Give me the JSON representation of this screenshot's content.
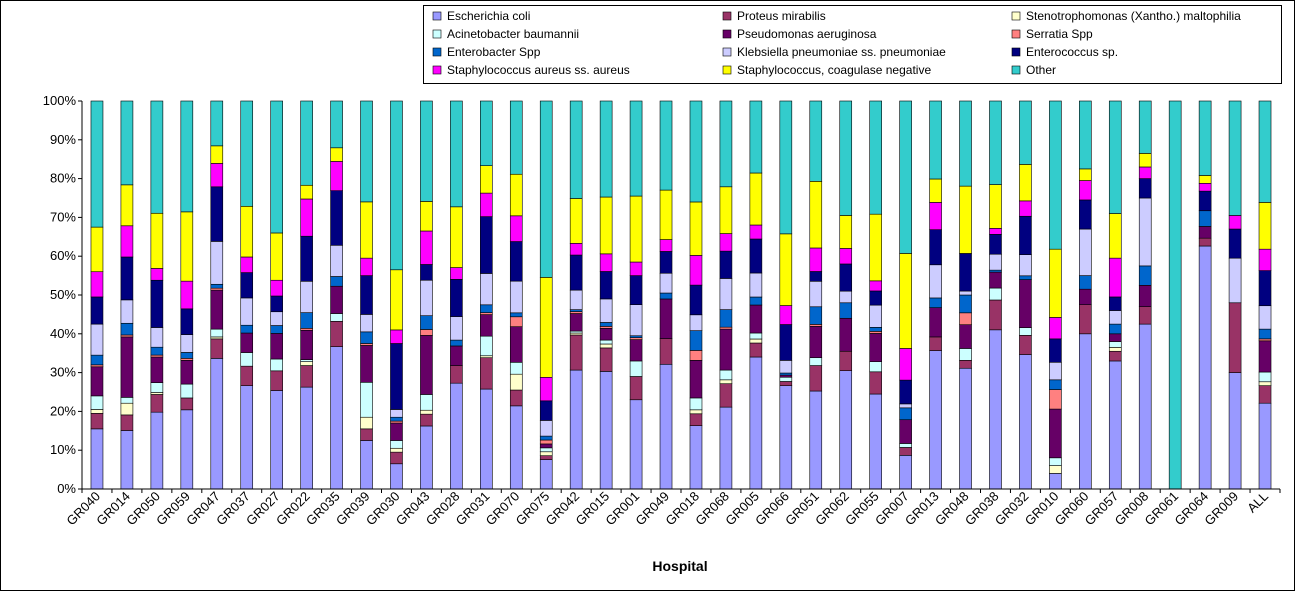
{
  "chart_data": {
    "type": "bar",
    "stacked": "percent",
    "xlabel": "Hospital",
    "ylabel": "",
    "ylim": [
      0,
      100
    ],
    "yticks": [
      "0%",
      "10%",
      "20%",
      "30%",
      "40%",
      "50%",
      "60%",
      "70%",
      "80%",
      "90%",
      "100%"
    ],
    "legend_position": "top-right",
    "grid": false,
    "categories": [
      "GR040",
      "GR014",
      "GR050",
      "GR059",
      "GR047",
      "GR037",
      "GR027",
      "GR022",
      "GR035",
      "GR039",
      "GR030",
      "GR043",
      "GR028",
      "GR031",
      "GR070",
      "GR075",
      "GR042",
      "GR015",
      "GR001",
      "GR049",
      "GR018",
      "GR068",
      "GR005",
      "GR066",
      "GR051",
      "GR062",
      "GR055",
      "GR007",
      "GR013",
      "GR048",
      "GR038",
      "GR032",
      "GR010",
      "GR060",
      "GR057",
      "GR008",
      "GR061",
      "GR064",
      "GR009",
      "ALL"
    ],
    "series": [
      {
        "name": "Escherichia coli",
        "color": "#9999ff",
        "values": [
          15.5,
          15,
          19.5,
          20,
          33.5,
          26.5,
          25,
          26,
          36.5,
          12.5,
          6.5,
          16,
          27,
          25.5,
          21,
          7.5,
          30.5,
          30,
          23,
          31.5,
          16,
          21,
          33,
          24.5,
          25,
          30.5,
          23.5,
          8.5,
          35.5,
          30.5,
          40,
          35,
          4,
          40,
          33,
          42.5,
          0,
          62,
          30,
          22
        ]
      },
      {
        "name": "Proteus mirabilis",
        "color": "#993366",
        "values": [
          4,
          4,
          4.5,
          3,
          5,
          5,
          5,
          5.5,
          6.5,
          3,
          3,
          3,
          4.5,
          8,
          4,
          1,
          9,
          6,
          6,
          6.5,
          3,
          6,
          3.5,
          1,
          6.5,
          5,
          5.5,
          2,
          3.5,
          2,
          7.5,
          5,
          0,
          7.5,
          2.5,
          4.5,
          0,
          2,
          18,
          4.5
        ]
      },
      {
        "name": "Stenotrophomonas (Xantho.) maltophilia",
        "color": "#ffffcc",
        "values": [
          1,
          3,
          0.5,
          0,
          0.5,
          0,
          0,
          1,
          0,
          3,
          1,
          1,
          0,
          0.5,
          4,
          1,
          0.5,
          1,
          0,
          0,
          1,
          1,
          1,
          0,
          0,
          0,
          0,
          0,
          0,
          0,
          0,
          0,
          2,
          0,
          1,
          0,
          0,
          0,
          0,
          1
        ]
      },
      {
        "name": "Acinetobacter baumannii",
        "color": "#ccffff",
        "values": [
          3.5,
          1.5,
          2.5,
          3.5,
          2,
          3.5,
          3,
          0.5,
          2,
          9,
          2,
          4,
          0,
          5,
          3,
          1,
          0.5,
          1,
          4,
          0,
          3,
          2.5,
          1.5,
          1,
          2,
          0,
          2.5,
          1,
          0,
          3,
          3,
          2,
          2,
          0,
          1.5,
          0,
          0,
          0,
          0,
          2.5
        ]
      },
      {
        "name": "Pseudomonas aeruginosa",
        "color": "#660066",
        "values": [
          7.5,
          15.5,
          6.5,
          6,
          10,
          5,
          6.5,
          7.5,
          7,
          9.5,
          4.5,
          15,
          5,
          5.5,
          9,
          1,
          4.5,
          3,
          5.5,
          10,
          9.5,
          10.5,
          7,
          0.5,
          8,
          8.5,
          7,
          6,
          7.5,
          6,
          4,
          12.5,
          12.5,
          4,
          2,
          5.5,
          0,
          3,
          0,
          8
        ]
      },
      {
        "name": "Serratia Spp",
        "color": "#ff8080",
        "values": [
          0.5,
          0.5,
          0.5,
          0.5,
          0.5,
          0,
          0,
          0.5,
          0,
          0.5,
          0.5,
          1.5,
          0,
          0.5,
          2.5,
          1,
          0.5,
          0.5,
          0.5,
          0,
          2.5,
          0.5,
          0,
          0,
          0.5,
          0,
          0.5,
          0,
          0,
          3,
          0,
          0,
          5,
          0,
          0,
          0,
          0,
          0,
          0,
          0.5
        ]
      },
      {
        "name": "Enterobacter Spp",
        "color": "#0066cc",
        "values": [
          2.5,
          3,
          2,
          1.5,
          1,
          2,
          2,
          4,
          2.5,
          3,
          1,
          3.5,
          1.5,
          2,
          1,
          1,
          0.5,
          1,
          0.5,
          1.5,
          5,
          4.5,
          2,
          0.5,
          4.5,
          4,
          1,
          3,
          2.5,
          4.5,
          0.5,
          1,
          2.5,
          3.5,
          2.5,
          5,
          0,
          4,
          0,
          2.5
        ]
      },
      {
        "name": "Klebsiella pneumoniae ss. pneumoniae",
        "color": "#ccccff",
        "values": [
          8,
          6,
          5,
          4.5,
          11,
          7,
          3.5,
          8,
          8,
          4.5,
          2,
          9,
          6,
          8,
          8,
          4,
          5,
          6,
          8,
          5,
          4,
          8,
          6,
          3,
          6.5,
          3,
          5.5,
          1,
          8.5,
          1,
          4,
          5.5,
          4.5,
          12,
          3.5,
          17.5,
          0,
          0,
          11.5,
          6
        ]
      },
      {
        "name": "Enterococcus sp.",
        "color": "#000080",
        "values": [
          7,
          11,
          12,
          6.5,
          14,
          6.5,
          4,
          11.5,
          14,
          10,
          17,
          4,
          9.5,
          14.5,
          10,
          5,
          9,
          7,
          7.5,
          5.5,
          7.5,
          7,
          8.5,
          8.5,
          2.5,
          7,
          3.5,
          6,
          9,
          9.5,
          5,
          10,
          6,
          7.5,
          3.5,
          5,
          0,
          5,
          7.5,
          9
        ]
      },
      {
        "name": "Staphylococcus aureus ss. aureus",
        "color": "#ff00ff",
        "values": [
          6.5,
          8,
          3,
          7,
          6,
          4,
          4,
          9.5,
          7.5,
          4.5,
          3.5,
          8.5,
          3,
          6,
          6.5,
          6,
          3,
          4.5,
          3.5,
          3,
          7.5,
          4.5,
          3.5,
          4.5,
          6,
          4,
          2.5,
          8,
          7,
          0,
          1.5,
          4,
          5.5,
          5,
          10,
          3,
          0,
          2,
          3.5,
          5.5
        ]
      },
      {
        "name": "Staphylococcus, coagulase negative",
        "color": "#ffff00",
        "values": [
          11.5,
          10.5,
          14,
          17.5,
          4.5,
          13,
          12,
          3.5,
          3.5,
          14.5,
          15.5,
          7.5,
          15.5,
          7,
          10.5,
          25.5,
          11.5,
          14.5,
          17,
          12.5,
          13.5,
          12,
          13,
          17,
          17,
          8.5,
          16.5,
          24,
          6,
          17,
          11,
          9.5,
          17.5,
          3,
          11.5,
          3.5,
          0,
          2,
          0,
          12
        ]
      },
      {
        "name": "Other",
        "color": "#33cccc",
        "values": [
          32.5,
          21.5,
          28.5,
          28,
          11.5,
          27,
          33.5,
          21.5,
          12,
          26,
          43.5,
          25.5,
          27,
          16.5,
          18.5,
          45,
          25,
          24.5,
          24.5,
          22.5,
          25.5,
          22,
          18,
          31.5,
          20.5,
          29.5,
          28,
          38.5,
          20,
          21.5,
          21,
          16.5,
          38,
          17.5,
          29,
          13.5,
          100,
          19,
          29.5,
          26
        ]
      }
    ]
  }
}
